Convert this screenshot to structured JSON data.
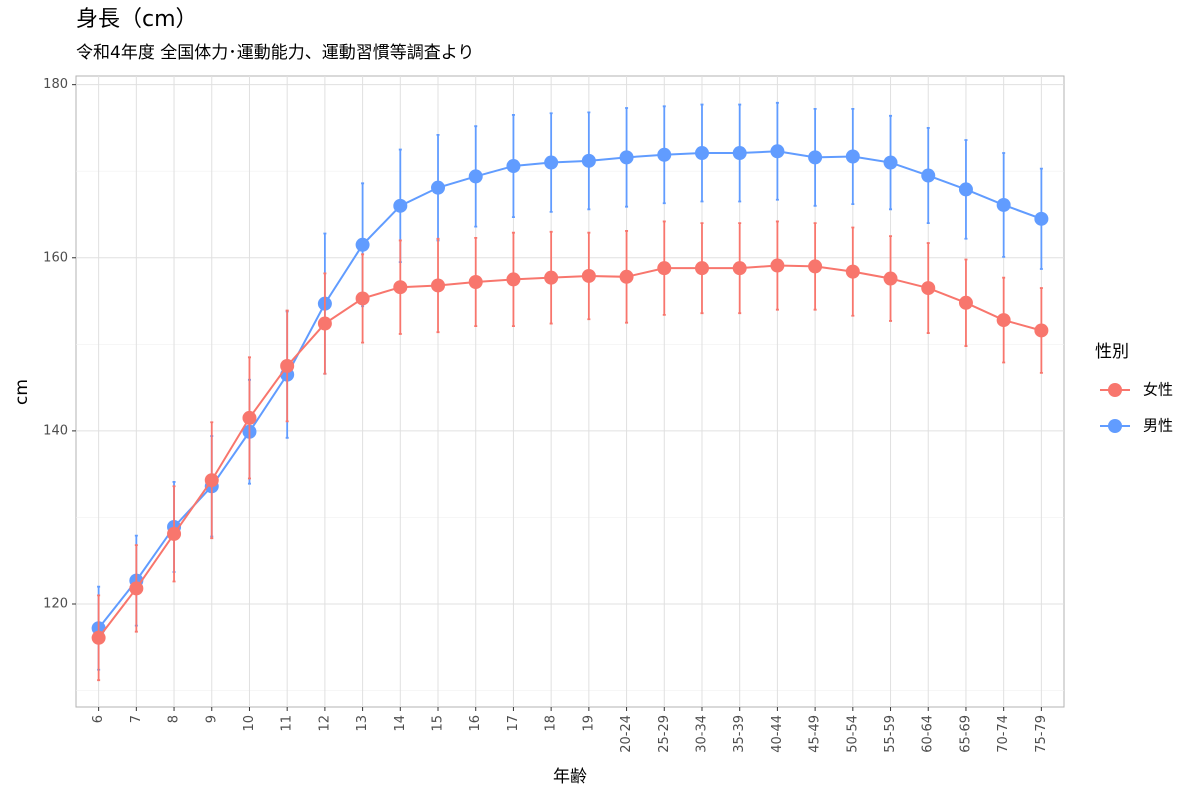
{
  "chart_data": {
    "type": "line",
    "title": "身長（cm）",
    "subtitle": "令和4年度 全国体力･運動能力、運動習慣等調査より",
    "x_label": "年齢",
    "y_label": "cm",
    "legend_title": "性別",
    "legend_position": "right",
    "categories": [
      "6",
      "7",
      "8",
      "9",
      "10",
      "11",
      "12",
      "13",
      "14",
      "15",
      "16",
      "17",
      "18",
      "19",
      "20-24",
      "25-29",
      "30-34",
      "35-39",
      "40-44",
      "45-49",
      "50-54",
      "55-59",
      "60-64",
      "65-69",
      "70-74",
      "75-79"
    ],
    "series": [
      {
        "name": "女性",
        "color": "#F8766D",
        "values": [
          116.1,
          121.8,
          128.1,
          134.3,
          141.5,
          147.5,
          152.4,
          155.3,
          156.6,
          156.8,
          157.2,
          157.5,
          157.7,
          157.9,
          157.8,
          158.8,
          158.8,
          158.8,
          159.1,
          159.0,
          158.4,
          157.6,
          156.5,
          154.8,
          152.8,
          151.6
        ],
        "errors": [
          4.9,
          5.0,
          5.5,
          6.7,
          7.0,
          6.4,
          5.8,
          5.1,
          5.4,
          5.4,
          5.1,
          5.4,
          5.3,
          5.0,
          5.3,
          5.4,
          5.2,
          5.2,
          5.1,
          5.0,
          5.1,
          4.9,
          5.2,
          5.0,
          4.9,
          4.9
        ]
      },
      {
        "name": "男性",
        "color": "#619CFF",
        "values": [
          117.2,
          122.7,
          128.9,
          133.6,
          139.9,
          146.5,
          154.7,
          161.5,
          166.0,
          168.1,
          169.4,
          170.6,
          171.0,
          171.2,
          171.6,
          171.9,
          172.1,
          172.1,
          172.3,
          171.6,
          171.7,
          171.0,
          169.5,
          167.9,
          166.1,
          164.5
        ],
        "errors": [
          4.8,
          5.2,
          5.2,
          5.8,
          6.0,
          7.3,
          8.1,
          7.1,
          6.5,
          6.1,
          5.8,
          5.9,
          5.7,
          5.6,
          5.7,
          5.6,
          5.6,
          5.6,
          5.6,
          5.6,
          5.5,
          5.4,
          5.5,
          5.7,
          6.0,
          5.8
        ]
      }
    ],
    "ylim": [
      108.1,
      181.0
    ],
    "yticks": [
      120,
      140,
      160,
      180
    ],
    "y_minor_grid": [
      110,
      130,
      150,
      170
    ],
    "grid": true
  }
}
